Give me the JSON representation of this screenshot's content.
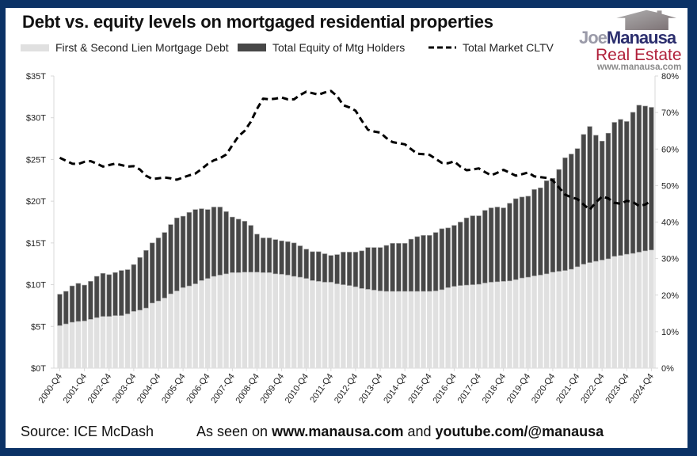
{
  "title": "Debt vs. equity levels on mortgaged residential properties",
  "footer": {
    "source": "Source: ICE McDash",
    "seen_prefix": "As seen on",
    "site": "www.manausa.com",
    "and": "and",
    "youtube": "youtube.com/@manausa"
  },
  "logo": {
    "name_part1": "Joe",
    "name_part2": "Manausa",
    "subtitle": "Real Estate",
    "url": "www.manausa.com"
  },
  "colors": {
    "frame": "#0b3266",
    "debt": "#e0e0e0",
    "equity": "#474747",
    "cltv": "#000000",
    "logo_navy": "#2c2f6e",
    "logo_red": "#b0203a"
  },
  "chart_data": {
    "type": "bar",
    "stacked": true,
    "title": "Debt vs. equity levels on mortgaged residential properties",
    "legend_placement": "top",
    "grid": false,
    "ylim": [
      0,
      35
    ],
    "y2lim": [
      0,
      80
    ],
    "y_ticks": [
      "$0T",
      "$5T",
      "$10T",
      "$15T",
      "$20T",
      "$25T",
      "$30T",
      "$35T"
    ],
    "y2_ticks": [
      "0%",
      "10%",
      "20%",
      "30%",
      "40%",
      "50%",
      "60%",
      "70%",
      "80%"
    ],
    "x_tick_labels": [
      "2000-Q4",
      "2001-Q4",
      "2002-Q4",
      "2003-Q4",
      "2004-Q4",
      "2005-Q4",
      "2006-Q4",
      "2007-Q4",
      "2008-Q4",
      "2009-Q4",
      "2010-Q4",
      "2011-Q4",
      "2012-Q4",
      "2013-Q4",
      "2014-Q4",
      "2015-Q4",
      "2016-Q4",
      "2017-Q4",
      "2018-Q4",
      "2019-Q4",
      "2020-Q4",
      "2021-Q4",
      "2022-Q4",
      "2023-Q4",
      "2024-Q4"
    ],
    "categories": [
      "2000-Q4",
      "2001-Q1",
      "2001-Q2",
      "2001-Q3",
      "2001-Q4",
      "2002-Q1",
      "2002-Q2",
      "2002-Q3",
      "2002-Q4",
      "2003-Q1",
      "2003-Q2",
      "2003-Q3",
      "2003-Q4",
      "2004-Q1",
      "2004-Q2",
      "2004-Q3",
      "2004-Q4",
      "2005-Q1",
      "2005-Q2",
      "2005-Q3",
      "2005-Q4",
      "2006-Q1",
      "2006-Q2",
      "2006-Q3",
      "2006-Q4",
      "2007-Q1",
      "2007-Q2",
      "2007-Q3",
      "2007-Q4",
      "2008-Q1",
      "2008-Q2",
      "2008-Q3",
      "2008-Q4",
      "2009-Q1",
      "2009-Q2",
      "2009-Q3",
      "2009-Q4",
      "2010-Q1",
      "2010-Q2",
      "2010-Q3",
      "2010-Q4",
      "2011-Q1",
      "2011-Q2",
      "2011-Q3",
      "2011-Q4",
      "2012-Q1",
      "2012-Q2",
      "2012-Q3",
      "2012-Q4",
      "2013-Q1",
      "2013-Q2",
      "2013-Q3",
      "2013-Q4",
      "2014-Q1",
      "2014-Q2",
      "2014-Q3",
      "2014-Q4",
      "2015-Q1",
      "2015-Q2",
      "2015-Q3",
      "2015-Q4",
      "2016-Q1",
      "2016-Q2",
      "2016-Q3",
      "2016-Q4",
      "2017-Q1",
      "2017-Q2",
      "2017-Q3",
      "2017-Q4",
      "2018-Q1",
      "2018-Q2",
      "2018-Q3",
      "2018-Q4",
      "2019-Q1",
      "2019-Q2",
      "2019-Q3",
      "2019-Q4",
      "2020-Q1",
      "2020-Q2",
      "2020-Q3",
      "2020-Q4",
      "2021-Q1",
      "2021-Q2",
      "2021-Q3",
      "2021-Q4",
      "2022-Q1",
      "2022-Q2",
      "2022-Q3",
      "2022-Q4",
      "2023-Q1",
      "2023-Q2",
      "2023-Q3",
      "2023-Q4",
      "2024-Q1",
      "2024-Q2",
      "2024-Q3",
      "2024-Q4"
    ],
    "series": [
      {
        "name": "First & Second Lien Mortgage Debt",
        "axis": "left",
        "kind": "bar",
        "values": [
          5.1,
          5.3,
          5.5,
          5.6,
          5.65,
          5.85,
          6.05,
          6.2,
          6.2,
          6.3,
          6.3,
          6.5,
          6.8,
          6.95,
          7.2,
          7.8,
          8.05,
          8.4,
          8.9,
          9.25,
          9.65,
          9.85,
          10.1,
          10.5,
          10.75,
          11.0,
          11.15,
          11.3,
          11.45,
          11.45,
          11.5,
          11.5,
          11.5,
          11.45,
          11.45,
          11.3,
          11.25,
          11.15,
          11.0,
          10.9,
          10.75,
          10.5,
          10.4,
          10.3,
          10.3,
          10.1,
          10.0,
          9.9,
          9.75,
          9.55,
          9.45,
          9.35,
          9.25,
          9.2,
          9.2,
          9.2,
          9.2,
          9.2,
          9.2,
          9.2,
          9.2,
          9.25,
          9.4,
          9.65,
          9.8,
          9.9,
          9.95,
          10.0,
          10.05,
          10.2,
          10.3,
          10.35,
          10.4,
          10.45,
          10.6,
          10.8,
          10.9,
          11.05,
          11.15,
          11.3,
          11.5,
          11.6,
          11.7,
          11.85,
          12.15,
          12.45,
          12.65,
          12.8,
          12.95,
          13.1,
          13.4,
          13.5,
          13.65,
          13.75,
          13.9,
          14.05,
          14.15
        ]
      },
      {
        "name": "Total Equity of Mtg Holders",
        "axis": "left",
        "kind": "bar",
        "values": [
          3.75,
          3.9,
          4.35,
          4.55,
          4.3,
          4.55,
          4.95,
          5.15,
          5.0,
          5.15,
          5.4,
          5.3,
          5.6,
          6.3,
          6.9,
          7.2,
          7.55,
          7.85,
          8.3,
          8.75,
          8.55,
          8.8,
          8.9,
          8.6,
          8.25,
          8.3,
          8.15,
          7.45,
          6.65,
          6.4,
          6.1,
          5.6,
          4.55,
          4.15,
          4.15,
          4.1,
          4.0,
          4.0,
          4.0,
          3.75,
          3.5,
          3.45,
          3.55,
          3.4,
          3.2,
          3.5,
          3.9,
          4.0,
          4.15,
          4.5,
          5.0,
          5.1,
          5.2,
          5.5,
          5.75,
          5.75,
          5.75,
          6.25,
          6.55,
          6.7,
          6.7,
          7.0,
          7.3,
          7.15,
          7.3,
          7.6,
          8.05,
          8.25,
          8.2,
          8.7,
          8.9,
          8.95,
          8.8,
          9.3,
          9.7,
          9.7,
          9.7,
          10.35,
          10.45,
          11.15,
          11.25,
          12.2,
          13.5,
          13.8,
          14.15,
          15.55,
          16.3,
          15.1,
          14.25,
          15.05,
          16.05,
          16.3,
          15.9,
          16.9,
          17.6,
          17.35,
          17.1
        ]
      },
      {
        "name": "Total Market CLTV",
        "axis": "right",
        "kind": "line",
        "style": "dashed",
        "unit": "%",
        "values": [
          57.6,
          56.8,
          56.0,
          55.9,
          56.5,
          56.7,
          56.0,
          55.2,
          55.6,
          56.0,
          55.6,
          55.2,
          55.3,
          54.4,
          52.7,
          51.8,
          52.0,
          52.2,
          52.0,
          51.6,
          52.2,
          52.8,
          53.3,
          54.5,
          55.9,
          56.9,
          57.5,
          58.5,
          61.0,
          63.5,
          65.0,
          67.5,
          71.0,
          73.8,
          73.6,
          73.8,
          74.1,
          73.6,
          73.6,
          74.8,
          75.7,
          75.3,
          74.9,
          75.5,
          75.9,
          74.5,
          72.0,
          71.4,
          70.5,
          67.8,
          65.3,
          64.8,
          64.5,
          63.0,
          61.9,
          61.6,
          61.3,
          60.0,
          58.7,
          58.6,
          58.4,
          57.3,
          56.2,
          56.1,
          56.6,
          55.2,
          54.2,
          54.4,
          54.7,
          53.7,
          52.8,
          53.5,
          54.3,
          53.5,
          52.7,
          53.1,
          53.6,
          52.5,
          52.3,
          52.1,
          51.4,
          49.5,
          47.5,
          46.8,
          46.3,
          44.8,
          43.4,
          45.4,
          47.0,
          46.5,
          45.3,
          45.0,
          45.8,
          45.5,
          44.4,
          44.8,
          45.8
        ]
      }
    ]
  }
}
